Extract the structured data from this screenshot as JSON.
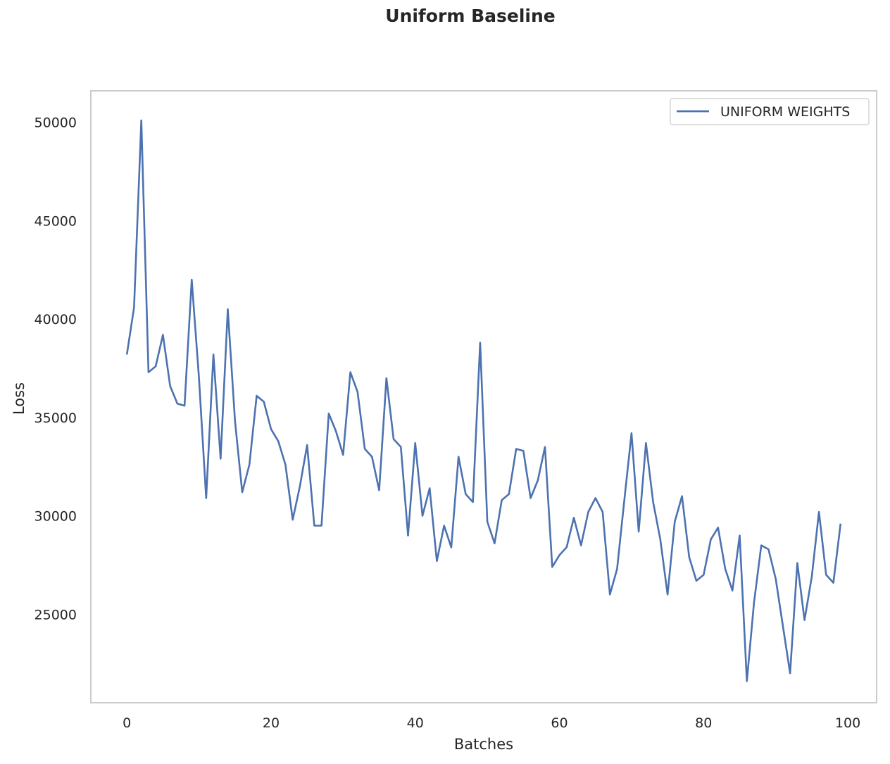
{
  "chart_data": {
    "type": "line",
    "title": "Uniform Baseline",
    "xlabel": "Batches",
    "ylabel": "Loss",
    "xlim": [
      -5,
      104
    ],
    "ylim": [
      20500,
      51600
    ],
    "xticks": [
      0,
      20,
      40,
      60,
      80,
      100
    ],
    "yticks": [
      25000,
      30000,
      35000,
      40000,
      45000,
      50000
    ],
    "grid": false,
    "legend_position": "top-right",
    "series": [
      {
        "name": "UNIFORM WEIGHTS",
        "color": "#4c72b0",
        "x": [
          0,
          1,
          2,
          3,
          4,
          5,
          6,
          7,
          8,
          9,
          10,
          11,
          12,
          13,
          14,
          15,
          16,
          17,
          18,
          19,
          20,
          21,
          22,
          23,
          24,
          25,
          26,
          27,
          28,
          29,
          30,
          31,
          32,
          33,
          34,
          35,
          36,
          37,
          38,
          39,
          40,
          41,
          42,
          43,
          44,
          45,
          46,
          47,
          48,
          49,
          50,
          51,
          52,
          53,
          54,
          55,
          56,
          57,
          58,
          59,
          60,
          61,
          62,
          63,
          64,
          65,
          66,
          67,
          68,
          69,
          70,
          71,
          72,
          73,
          74,
          75,
          76,
          77,
          78,
          79,
          80,
          81,
          82,
          83,
          84,
          85,
          86,
          87,
          88,
          89,
          90,
          91,
          92,
          93,
          94,
          95,
          96,
          97,
          98,
          99
        ],
        "values": [
          38200,
          40600,
          50100,
          37300,
          37600,
          39200,
          36600,
          35700,
          35600,
          42000,
          37000,
          30900,
          38200,
          32900,
          40500,
          34800,
          31200,
          32600,
          36100,
          35800,
          34400,
          33800,
          32600,
          29800,
          31500,
          33600,
          29500,
          29500,
          35200,
          34300,
          33100,
          37300,
          36300,
          33400,
          33000,
          31300,
          37000,
          33900,
          33500,
          29000,
          33700,
          30000,
          31400,
          27700,
          29500,
          28400,
          33000,
          31100,
          30700,
          38800,
          29700,
          28600,
          30800,
          31100,
          33400,
          33300,
          30900,
          31800,
          33500,
          27400,
          28000,
          28400,
          29900,
          28500,
          30200,
          30900,
          30200,
          26000,
          27300,
          30800,
          34200,
          29200,
          33700,
          30700,
          28800,
          26000,
          29700,
          31000,
          27900,
          26700,
          27000,
          28800,
          29400,
          27300,
          26200,
          29000,
          21600,
          25600,
          28500,
          28300,
          26800,
          24400,
          22000,
          27600,
          24700,
          26900,
          30200,
          27000,
          26600,
          29600
        ]
      }
    ]
  }
}
